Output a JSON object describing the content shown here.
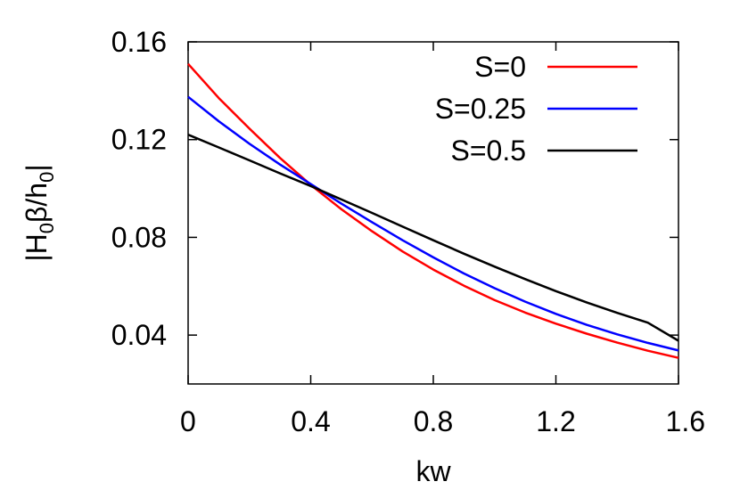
{
  "chart_data": {
    "type": "line",
    "title": "",
    "xlabel": "kw",
    "ylabel_parts": [
      {
        "text": "|H",
        "sub": false
      },
      {
        "text": "0",
        "sub": true
      },
      {
        "text": "β/h",
        "sub": false
      },
      {
        "text": "0",
        "sub": true
      },
      {
        "text": "|",
        "sub": false
      }
    ],
    "xlim": [
      0,
      1.6
    ],
    "ylim": [
      0.02,
      0.16
    ],
    "xticks": [
      0,
      0.4,
      0.8,
      1.2,
      1.6
    ],
    "xtick_labels": [
      "0",
      "0.4",
      "0.8",
      "1.2",
      "1.6"
    ],
    "yticks": [
      0.04,
      0.08,
      0.12,
      0.16
    ],
    "ytick_labels": [
      "0.04",
      "0.08",
      "0.12",
      "0.16"
    ],
    "grid": false,
    "legend_position": "top-right",
    "x": [
      0,
      0.1,
      0.2,
      0.3,
      0.4,
      0.5,
      0.6,
      0.7,
      0.8,
      0.9,
      1.0,
      1.1,
      1.2,
      1.3,
      1.4,
      1.5,
      1.6
    ],
    "series": [
      {
        "name": "S=0",
        "color": "#ff0000",
        "values": [
          0.151,
          0.137,
          0.1245,
          0.1125,
          0.1015,
          0.0915,
          0.0825,
          0.0742,
          0.0668,
          0.0602,
          0.0543,
          0.0492,
          0.0447,
          0.0406,
          0.0369,
          0.0336,
          0.0307
        ]
      },
      {
        "name": "S=0.25",
        "color": "#0000ff",
        "values": [
          0.1375,
          0.1275,
          0.1183,
          0.1098,
          0.1018,
          0.0938,
          0.0862,
          0.0788,
          0.0718,
          0.0652,
          0.0592,
          0.0537,
          0.0487,
          0.0442,
          0.0403,
          0.0368,
          0.0337
        ]
      },
      {
        "name": "S=0.5",
        "color": "#000000",
        "values": [
          0.122,
          0.1168,
          0.1115,
          0.1062,
          0.101,
          0.0955,
          0.09,
          0.0844,
          0.0788,
          0.0733,
          0.068,
          0.0629,
          0.058,
          0.0534,
          0.0491,
          0.0451,
          0.0377
        ]
      }
    ]
  }
}
